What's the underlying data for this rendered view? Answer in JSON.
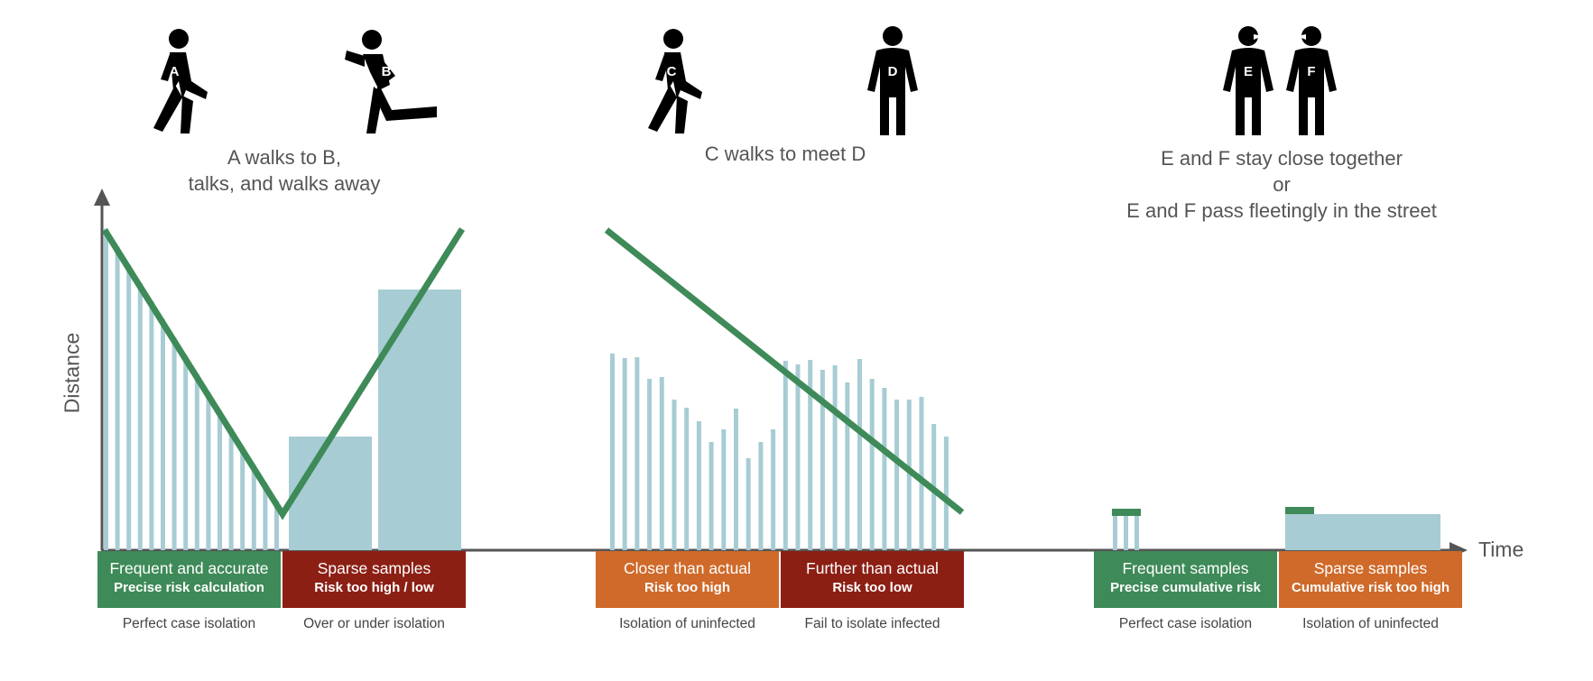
{
  "colors": {
    "green": "#3e8a58",
    "red": "#8c1f14",
    "orange": "#cf6a2a",
    "bar": "#a7ccd4",
    "axis": "#555555",
    "figure": "#000000"
  },
  "axes": {
    "ylabel": "Distance",
    "xlabel": "Time"
  },
  "scenarios": [
    {
      "id": "ab",
      "caption": [
        "A walks to B,",
        "talks, and walks away"
      ],
      "people": [
        {
          "letter": "A",
          "pose": "walking"
        },
        {
          "letter": "B",
          "pose": "running"
        }
      ]
    },
    {
      "id": "cd",
      "caption": [
        "C walks to meet D"
      ],
      "people": [
        {
          "letter": "C",
          "pose": "walking"
        },
        {
          "letter": "D",
          "pose": "standing"
        }
      ]
    },
    {
      "id": "ef",
      "caption": [
        "E and F stay close together",
        "or",
        "E and F pass fleetingly in the street"
      ],
      "people": [
        {
          "letter": "E",
          "pose": "talking"
        },
        {
          "letter": "F",
          "pose": "talking"
        }
      ]
    }
  ],
  "boxes": [
    {
      "color": "green",
      "line1": "Frequent and accurate",
      "line2": "Precise risk calculation",
      "outcome": "Perfect case isolation"
    },
    {
      "color": "red",
      "line1": "Sparse samples",
      "line2": "Risk too high / low",
      "outcome": "Over or under isolation"
    },
    {
      "color": "orange",
      "line1": "Closer than actual",
      "line2": "Risk too high",
      "outcome": "Isolation of uninfected"
    },
    {
      "color": "red",
      "line1": "Further than actual",
      "line2": "Risk too low",
      "outcome": "Fail to isolate infected"
    },
    {
      "color": "green",
      "line1": "Frequent samples",
      "line2": "Precise cumulative risk",
      "outcome": "Perfect case isolation"
    },
    {
      "color": "orange",
      "line1": "Sparse samples",
      "line2": "Cumulative risk too high",
      "outcome": "Isolation of uninfected"
    }
  ]
}
